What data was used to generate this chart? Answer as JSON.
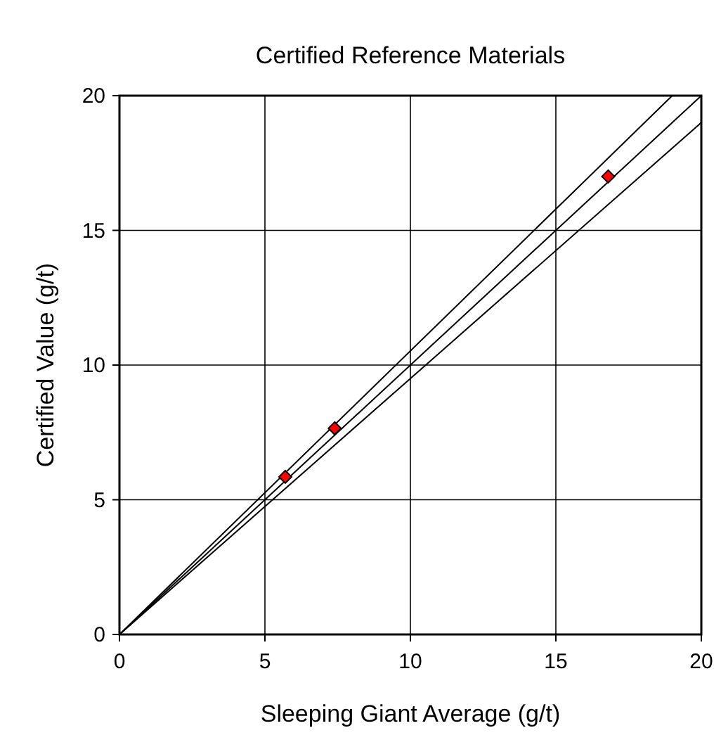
{
  "chart_data": {
    "type": "scatter",
    "title": "Certified Reference Materials",
    "xlabel": "Sleeping Giant Average (g/t)",
    "ylabel": "Certified Value (g/t)",
    "xlim": [
      0,
      20
    ],
    "ylim": [
      0,
      20
    ],
    "xticks": [
      0,
      5,
      10,
      15,
      20
    ],
    "yticks": [
      0,
      5,
      10,
      15,
      20
    ],
    "grid": true,
    "series": [
      {
        "type": "line",
        "color": "#000000",
        "x": [
          0,
          19
        ],
        "values": [
          0,
          20
        ],
        "marker": "none"
      },
      {
        "type": "line",
        "color": "#000000",
        "x": [
          0,
          20
        ],
        "values": [
          0,
          20
        ],
        "marker": "none"
      },
      {
        "type": "line",
        "color": "#000000",
        "x": [
          0,
          20
        ],
        "values": [
          0,
          19
        ],
        "marker": "none"
      },
      {
        "type": "scatter",
        "color": "#ff0000",
        "x": [
          5.7,
          7.4,
          16.8
        ],
        "values": [
          5.85,
          7.65,
          17.0
        ],
        "marker": "diamond"
      }
    ]
  }
}
